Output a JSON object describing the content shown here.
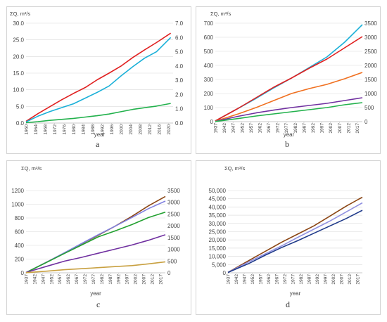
{
  "panels": [
    {
      "letter": "a",
      "chart_data": {
        "type": "line",
        "ylabel": "ΣQ, m³/s",
        "xlabel": "year",
        "x_ticks": [
          "1960",
          "1964",
          "1968",
          "1972",
          "1976",
          "1980",
          "1984",
          "1988",
          "1992",
          "1996",
          "2000",
          "2004",
          "2008",
          "2012",
          "2016",
          "2020"
        ],
        "xlim": [
          1960,
          2022
        ],
        "y_left": {
          "lim": [
            0,
            30
          ],
          "ticks": [
            "0.0",
            "5.0",
            "10.0",
            "15.0",
            "20.0",
            "25.0",
            "30.0"
          ]
        },
        "y_right": {
          "lim": [
            0,
            7
          ],
          "ticks": [
            "0.0",
            "1.0",
            "2.0",
            "3.0",
            "4.0",
            "5.0",
            "6.0",
            "7.0"
          ]
        },
        "grid": "horizontal",
        "series": [
          {
            "color": "#e02020",
            "axis": "left",
            "x": [
              1960,
              1965,
              1970,
              1975,
              1980,
              1985,
              1990,
              1995,
              2000,
              2005,
              2010,
              2015,
              2021
            ],
            "values": [
              0.5,
              2.8,
              4.9,
              7.0,
              8.9,
              10.7,
              13.0,
              15.0,
              17.1,
              19.7,
              22.0,
              24.2,
              27.0
            ]
          },
          {
            "color": "#1ab0d8",
            "axis": "right",
            "x": [
              1960,
              1965,
              1970,
              1975,
              1980,
              1985,
              1990,
              1995,
              2000,
              2005,
              2010,
              2015,
              2021
            ],
            "values": [
              0.08,
              0.48,
              0.8,
              1.08,
              1.35,
              1.75,
              2.15,
              2.6,
              3.3,
              3.95,
              4.55,
              5.0,
              6.0
            ]
          },
          {
            "color": "#22b14c",
            "axis": "left",
            "x": [
              1960,
              1965,
              1970,
              1975,
              1980,
              1985,
              1990,
              1995,
              2000,
              2005,
              2010,
              2015,
              2021
            ],
            "values": [
              0.1,
              0.4,
              0.8,
              1.1,
              1.4,
              1.8,
              2.2,
              2.7,
              3.4,
              4.1,
              4.6,
              5.1,
              5.9
            ]
          }
        ]
      }
    },
    {
      "letter": "b",
      "chart_data": {
        "type": "line",
        "ylabel": "ΣQ, m³/s",
        "xlabel": "year",
        "x_ticks": [
          "1937",
          "1942",
          "1947",
          "1952",
          "1957",
          "1962",
          "1967",
          "1972",
          "1977",
          "1982",
          "1987",
          "1992",
          "1997",
          "2002",
          "2007",
          "2012",
          "2017"
        ],
        "xlim": [
          1937,
          2020
        ],
        "y_left": {
          "lim": [
            0,
            700
          ],
          "ticks": [
            "0",
            "100",
            "200",
            "300",
            "400",
            "500",
            "600",
            "700"
          ]
        },
        "y_right": {
          "lim": [
            0,
            3500
          ],
          "ticks": [
            "0",
            "500",
            "1000",
            "1500",
            "2000",
            "2500",
            "3000",
            "3500"
          ]
        },
        "grid": "horizontal",
        "series": [
          {
            "color": "#1ab0d8",
            "axis": "left",
            "x": [
              1937,
              1950,
              1960,
              1970,
              1980,
              1990,
              2000,
              2010,
              2020
            ],
            "values": [
              5,
              95,
              165,
              240,
              310,
              385,
              460,
              565,
              690
            ]
          },
          {
            "color": "#e02020",
            "axis": "left",
            "x": [
              1937,
              1950,
              1960,
              1970,
              1980,
              1990,
              2000,
              2010,
              2020
            ],
            "values": [
              5,
              95,
              170,
              245,
              310,
              380,
              445,
              525,
              605
            ]
          },
          {
            "color": "#f07020",
            "axis": "left",
            "x": [
              1937,
              1950,
              1960,
              1970,
              1980,
              1990,
              2000,
              2010,
              2020
            ],
            "values": [
              3,
              55,
              100,
              150,
              200,
              235,
              265,
              305,
              350
            ]
          },
          {
            "color": "#7030a0",
            "axis": "left",
            "x": [
              1937,
              1950,
              1960,
              1970,
              1980,
              1990,
              2000,
              2010,
              2020
            ],
            "values": [
              2,
              38,
              62,
              82,
              100,
              115,
              130,
              150,
              170
            ]
          },
          {
            "color": "#22b14c",
            "axis": "left",
            "x": [
              1937,
              1950,
              1960,
              1970,
              1980,
              1990,
              2000,
              2010,
              2020
            ],
            "values": [
              1,
              22,
              40,
              55,
              70,
              85,
              100,
              120,
              135
            ]
          }
        ]
      }
    },
    {
      "letter": "c",
      "chart_data": {
        "type": "line",
        "ylabel": "ΣQ, m³/s",
        "xlabel": "year",
        "x_ticks": [
          "1937",
          "1942",
          "1947",
          "1952",
          "1957",
          "1962",
          "1967",
          "1972",
          "1977",
          "1982",
          "1987",
          "1992",
          "1997",
          "2002",
          "2007",
          "2012",
          "2017"
        ],
        "xlim": [
          1937,
          2020
        ],
        "y_left": {
          "lim": [
            0,
            1200
          ],
          "ticks": [
            "0",
            "200",
            "400",
            "600",
            "800",
            "1000",
            "1200"
          ]
        },
        "y_right": {
          "lim": [
            0,
            3500
          ],
          "ticks": [
            "0",
            "500",
            "1000",
            "1500",
            "2000",
            "2500",
            "3000",
            "3500"
          ]
        },
        "grid": "horizontal",
        "series": [
          {
            "color": "#8b4513",
            "axis": "right",
            "x": [
              1937,
              1950,
              1960,
              1970,
              1980,
              1990,
              2000,
              2010,
              2020
            ],
            "values": [
              10,
              480,
              850,
              1230,
              1600,
              1980,
              2400,
              2850,
              3250
            ]
          },
          {
            "color": "#8080e0",
            "axis": "right",
            "x": [
              1937,
              1950,
              1960,
              1970,
              1980,
              1990,
              2000,
              2010,
              2020
            ],
            "values": [
              10,
              480,
              860,
              1240,
              1620,
              1980,
              2350,
              2730,
              3050
            ]
          },
          {
            "color": "#22a030",
            "axis": "right",
            "x": [
              1937,
              1950,
              1960,
              1970,
              1980,
              1990,
              2000,
              2010,
              2020
            ],
            "values": [
              10,
              470,
              830,
              1180,
              1530,
              1780,
              2050,
              2350,
              2580
            ]
          },
          {
            "color": "#7030a0",
            "axis": "left",
            "x": [
              1937,
              1950,
              1960,
              1970,
              1980,
              1990,
              2000,
              2010,
              2020
            ],
            "values": [
              5,
              100,
              170,
              225,
              285,
              345,
              405,
              475,
              555
            ]
          },
          {
            "color": "#c8a040",
            "axis": "left",
            "x": [
              1937,
              1950,
              1960,
              1970,
              1980,
              1990,
              2000,
              2010,
              2020
            ],
            "values": [
              2,
              25,
              45,
              60,
              75,
              90,
              105,
              130,
              160
            ]
          }
        ]
      }
    },
    {
      "letter": "d",
      "chart_data": {
        "type": "line",
        "ylabel": "ΣQ, m³/s",
        "xlabel": "year",
        "x_ticks": [
          "1937",
          "1942",
          "1947",
          "1952",
          "1957",
          "1962",
          "1967",
          "1972",
          "1977",
          "1982",
          "1987",
          "1992",
          "1997",
          "2002",
          "2007",
          "2012",
          "2017"
        ],
        "xlim": [
          1937,
          2020
        ],
        "y_left": {
          "lim": [
            0,
            50000
          ],
          "ticks": [
            "0",
            "5,000",
            "10,000",
            "15,000",
            "20,000",
            "25,000",
            "30,000",
            "35,000",
            "40,000",
            "45,000",
            "50,000"
          ]
        },
        "grid": "horizontal",
        "series": [
          {
            "color": "#8b4513",
            "axis": "left",
            "x": [
              1937,
              1950,
              1960,
              1970,
              1980,
              1990,
              2000,
              2010,
              2020
            ],
            "values": [
              200,
              7500,
              13000,
              18500,
              23500,
              28500,
              34500,
              40500,
              46000
            ]
          },
          {
            "color": "#9090e0",
            "axis": "left",
            "x": [
              1937,
              1950,
              1960,
              1970,
              1980,
              1990,
              2000,
              2010,
              2020
            ],
            "values": [
              200,
              6700,
              11500,
              16300,
              21500,
              26500,
              31500,
              37000,
              42500
            ]
          },
          {
            "color": "#1f3a8a",
            "axis": "left",
            "x": [
              1937,
              1950,
              1960,
              1970,
              1980,
              1990,
              2000,
              2010,
              2020
            ],
            "values": [
              200,
              5700,
              10700,
              15300,
              19500,
              24000,
              28500,
              33000,
              38000
            ]
          }
        ]
      }
    }
  ]
}
